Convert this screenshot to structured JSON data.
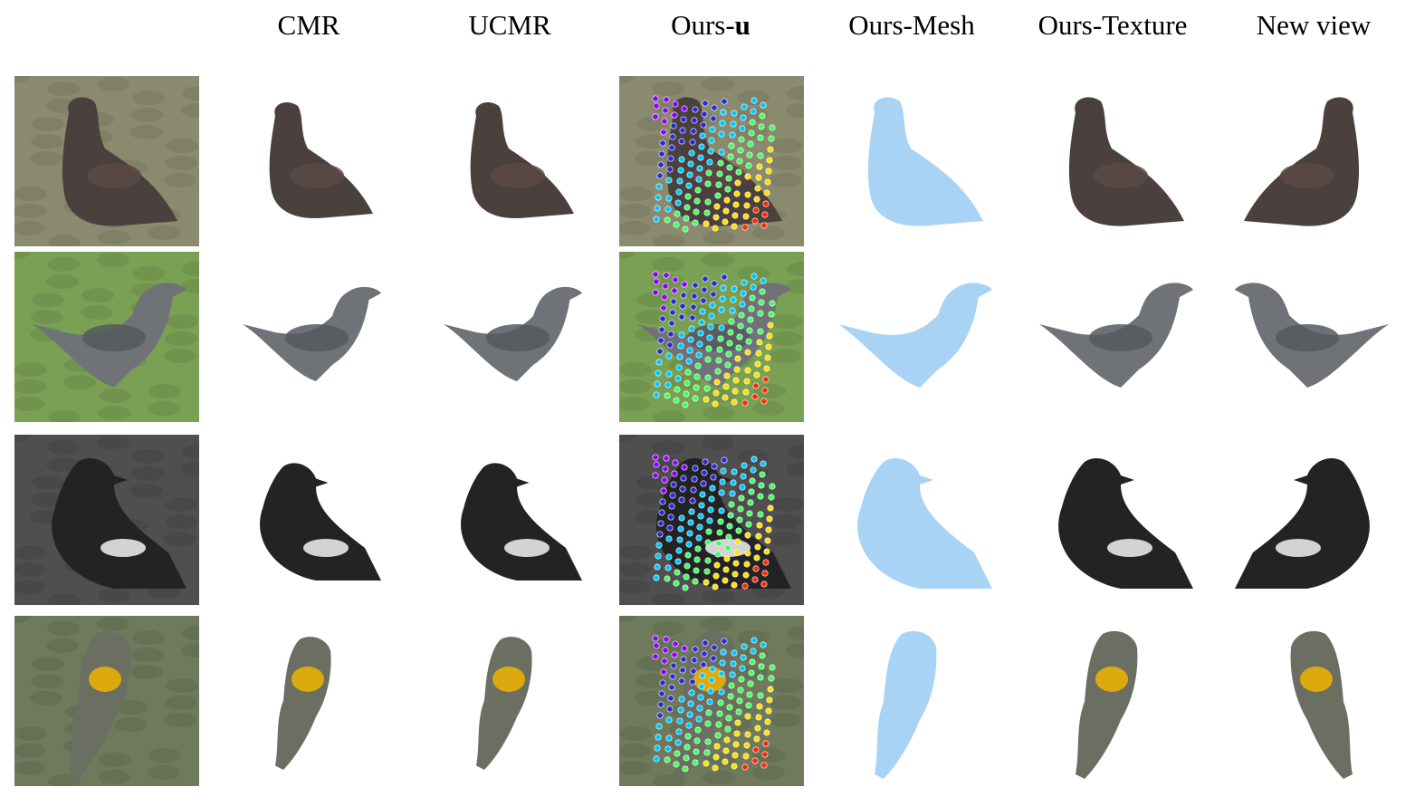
{
  "headers": [
    {
      "text": "CMR"
    },
    {
      "text": "UCMR"
    },
    {
      "text": "Ours-",
      "bold": "u"
    },
    {
      "text": "Ours-Mesh"
    },
    {
      "text": "Ours-Texture"
    },
    {
      "text": "New view"
    }
  ],
  "rows": [
    {
      "background": "#8a8b6e",
      "bird": "#4a403d",
      "accent": "#5b4a45"
    },
    {
      "background": "#7aa054",
      "bird": "#6f7378",
      "accent": "#55595e"
    },
    {
      "background": "#4f4f4f",
      "bird": "#232325",
      "accent": "#f2f2f2"
    },
    {
      "background": "#6f7a5c",
      "bird": "#6b6f62",
      "accent": "#f0b400"
    }
  ],
  "colors": {
    "mesh": "#a9d3f5",
    "keypoint_gradient": [
      "#8b00ff",
      "#2a2ad8",
      "#00c8ff",
      "#40ff60",
      "#ffe000",
      "#ff2a00"
    ]
  }
}
